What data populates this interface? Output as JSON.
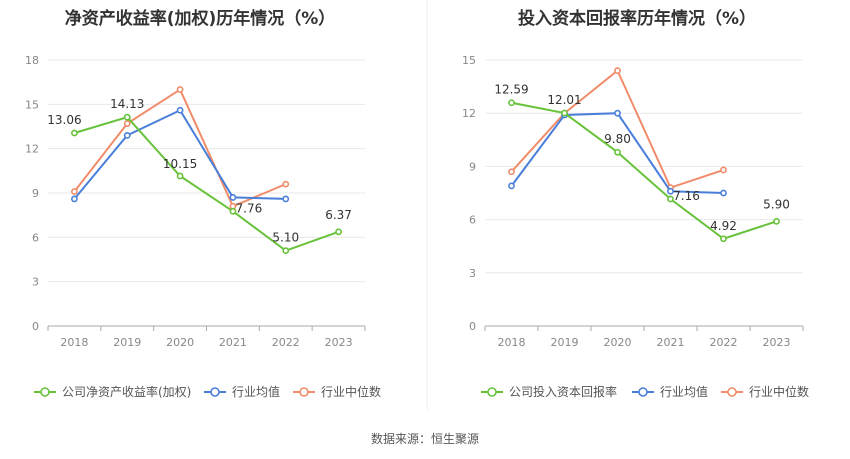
{
  "colors": {
    "company": "#67c23a",
    "avg": "#4a7fd9",
    "median": "#f08c6a",
    "grid": "#e8e8e8",
    "axis": "#aaaaaa"
  },
  "legend": {
    "avg": "行业均值",
    "median": "行业中位数"
  },
  "source": "数据来源：恒生聚源",
  "chart_data": [
    {
      "type": "line",
      "title": "净资产收益率(加权)历年情况（%）",
      "categories": [
        "2018",
        "2019",
        "2020",
        "2021",
        "2022",
        "2023"
      ],
      "ylim": [
        0,
        18
      ],
      "yticks": [
        "0",
        "3",
        "6",
        "9",
        "12",
        "15",
        "18"
      ],
      "grid": true,
      "legend_position": "bottom",
      "series": [
        {
          "name": "公司净资产收益率(加权)",
          "key": "company",
          "values": [
            13.06,
            14.13,
            10.15,
            7.76,
            5.1,
            6.37
          ],
          "labels": [
            "13.06",
            "14.13",
            "10.15",
            "7.76",
            "5.10",
            "6.37"
          ]
        },
        {
          "name": "行业均值",
          "key": "avg",
          "values": [
            8.6,
            12.9,
            14.6,
            8.7,
            8.6,
            null
          ]
        },
        {
          "name": "行业中位数",
          "key": "median",
          "values": [
            9.1,
            13.7,
            16.0,
            8.1,
            9.6,
            null
          ]
        }
      ]
    },
    {
      "type": "line",
      "title": "投入资本回报率历年情况（%）",
      "categories": [
        "2018",
        "2019",
        "2020",
        "2021",
        "2022",
        "2023"
      ],
      "ylim": [
        0,
        15
      ],
      "yticks": [
        "0",
        "3",
        "6",
        "9",
        "12",
        "15"
      ],
      "grid": true,
      "legend_position": "bottom",
      "series": [
        {
          "name": "公司投入资本回报率",
          "key": "company",
          "values": [
            12.59,
            12.01,
            9.8,
            7.16,
            4.92,
            5.9
          ],
          "labels": [
            "12.59",
            "12.01",
            "9.80",
            "7.16",
            "4.92",
            "5.90"
          ]
        },
        {
          "name": "行业均值",
          "key": "avg",
          "values": [
            7.9,
            11.9,
            12.0,
            7.6,
            7.5,
            null
          ]
        },
        {
          "name": "行业中位数",
          "key": "median",
          "values": [
            8.7,
            12.0,
            14.4,
            7.8,
            8.8,
            null
          ]
        }
      ]
    }
  ]
}
